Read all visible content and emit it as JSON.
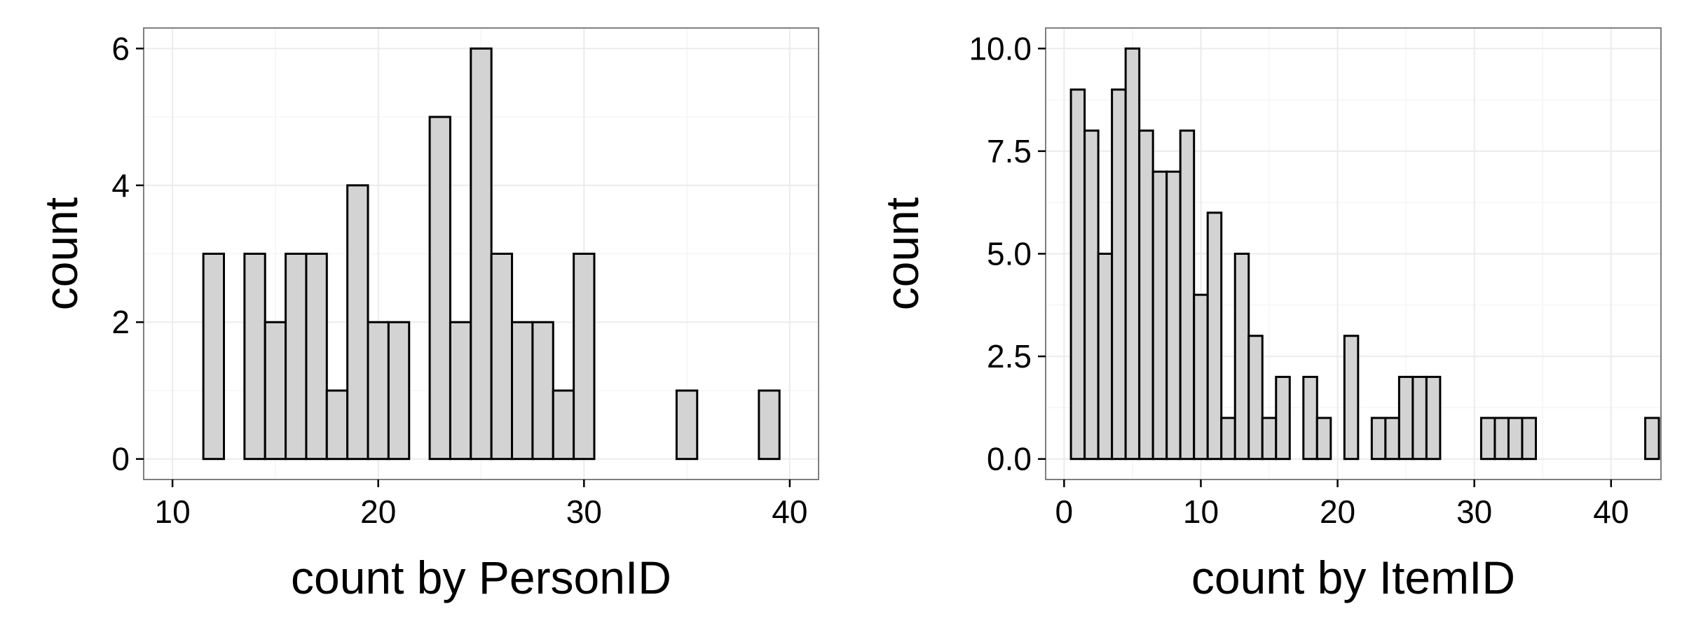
{
  "chart_data": [
    {
      "type": "bar",
      "title": "",
      "xlabel": "count by PersonID",
      "ylabel": "count",
      "xlim": [
        8.6,
        41.4
      ],
      "ylim": [
        -0.3,
        6.3
      ],
      "xticks": [
        10,
        20,
        30,
        40
      ],
      "xtick_labels": [
        "10",
        "20",
        "30",
        "40"
      ],
      "yticks": [
        0,
        2,
        4,
        6
      ],
      "ytick_labels": [
        "0",
        "2",
        "4",
        "6"
      ],
      "grid": true,
      "bar_fill": "#d3d3d3",
      "bar_stroke": "#000000",
      "bin_width": 1,
      "x": [
        12,
        14,
        15,
        16,
        17,
        18,
        19,
        20,
        21,
        23,
        24,
        25,
        26,
        27,
        28,
        29,
        30,
        35,
        39
      ],
      "values": [
        3,
        3,
        2,
        3,
        3,
        1,
        4,
        2,
        2,
        5,
        2,
        6,
        3,
        2,
        2,
        1,
        3,
        1,
        1
      ]
    },
    {
      "type": "bar",
      "title": "",
      "xlabel": "count by ItemID",
      "ylabel": "count",
      "xlim": [
        -1.35,
        43.65
      ],
      "ylim": [
        -0.5,
        10.5
      ],
      "xticks": [
        0,
        10,
        20,
        30,
        40
      ],
      "xtick_labels": [
        "0",
        "10",
        "20",
        "30",
        "40"
      ],
      "yticks": [
        0,
        2.5,
        5,
        7.5,
        10
      ],
      "ytick_labels": [
        "0.0",
        "2.5",
        "5.0",
        "7.5",
        "10.0"
      ],
      "grid": true,
      "bar_fill": "#d3d3d3",
      "bar_stroke": "#000000",
      "bin_width": 1,
      "x": [
        1,
        2,
        3,
        4,
        5,
        6,
        7,
        8,
        9,
        10,
        11,
        12,
        13,
        14,
        15,
        16,
        18,
        19,
        21,
        23,
        24,
        25,
        26,
        27,
        31,
        32,
        33,
        34,
        43
      ],
      "values": [
        9,
        8,
        5,
        9,
        10,
        8,
        7,
        7,
        8,
        4,
        6,
        1,
        5,
        3,
        1,
        2,
        2,
        1,
        3,
        1,
        1,
        2,
        2,
        2,
        1,
        1,
        1,
        1,
        1
      ]
    }
  ]
}
